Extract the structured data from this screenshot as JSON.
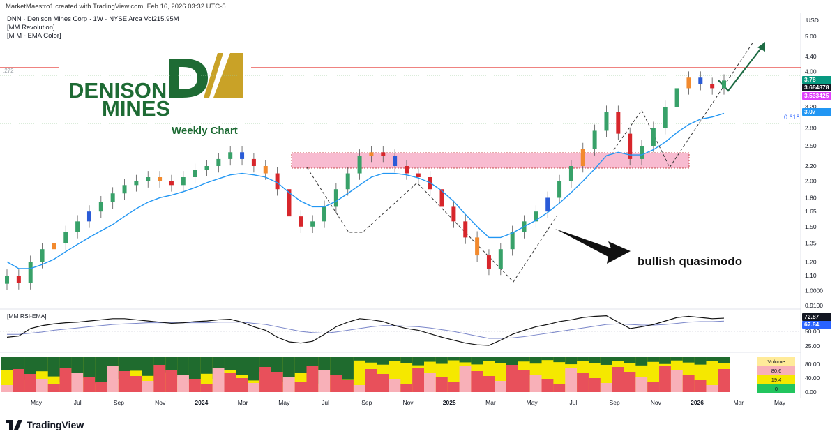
{
  "header": {
    "credit": "MarketMaestro1 created with TradingView.com, Feb 16, 2026 03:32 UTC-5",
    "symbol_line": "DNN · Denison Mines Corp · 1W · NYSE Arca  Vol215.95M",
    "indicator1": "[MM Revolution]",
    "indicator2": "[M M - EMA Color]"
  },
  "logo": {
    "line1": "DENISON",
    "line2": "MINES"
  },
  "annotations": {
    "weekly_chart": "Weekly Chart",
    "pattern_label": "bullish quasimodo",
    "fib_label": "0.618",
    "left_level_label": ".272"
  },
  "price_axis": {
    "currency": "USD",
    "ticks": [
      "5.00",
      "4.40",
      "4.00",
      "3.20",
      "2.80",
      "2.50",
      "2.20",
      "2.00",
      "1.80",
      "1.65",
      "1.50",
      "1.35",
      "1.20",
      "1.10",
      "1.0000",
      "0.9100"
    ],
    "tags": [
      {
        "label": "3.78",
        "color": "#089981",
        "text": "#ffffff"
      },
      {
        "label": "3.684878",
        "color": "#131722",
        "text": "#ffffff"
      },
      {
        "label": "3.533425",
        "color": "#e040fb",
        "text": "#ffffff"
      },
      {
        "label": "3.07",
        "color": "#2196f3",
        "text": "#ffffff"
      }
    ]
  },
  "rsi_panel": {
    "title": "[MM RSI-EMA]",
    "ticks": [
      "50.00",
      "25.00"
    ],
    "tags": [
      {
        "label": "72.87",
        "color": "#131722",
        "text": "#ffffff"
      },
      {
        "label": "67.84",
        "color": "#2962ff",
        "text": "#ffffff"
      }
    ]
  },
  "volume_panel": {
    "legend": [
      {
        "label": "Volume",
        "color": "#ffeb99",
        "text": "#131722"
      },
      {
        "label": "80.6",
        "color": "#f8b0b8",
        "text": "#131722"
      },
      {
        "label": "19.4",
        "color": "#f5e800",
        "text": "#131722"
      },
      {
        "label": "0",
        "color": "#22c55e",
        "text": "#131722"
      }
    ],
    "ticks": [
      "80.00",
      "40.00",
      "0.00"
    ]
  },
  "time_axis": {
    "labels": [
      "May",
      "Jul",
      "Sep",
      "Nov",
      "2024",
      "Mar",
      "May",
      "Jul",
      "Sep",
      "Nov",
      "2025",
      "Mar",
      "May",
      "Jul",
      "Sep",
      "Nov",
      "2026",
      "Mar",
      "May"
    ]
  },
  "footer": {
    "brand": "TradingView"
  },
  "colors": {
    "up": "#38a169",
    "down": "#d7262b",
    "orange": "#f28a2e",
    "blue": "#2a5bd7",
    "ema": "#2196f3",
    "zone": "#f8bbd0",
    "resistance": "#e53935"
  },
  "chart_data": {
    "type": "line",
    "title": "DNN · Denison Mines Corp · 1W · NYSE Arca",
    "xlabel": "",
    "ylabel": "",
    "ylim": [
      0.91,
      5.0
    ],
    "y_scale": "log",
    "resistance_level": 4.15,
    "fib_0618_level": 2.9,
    "demand_zone": [
      2.2,
      2.4
    ],
    "series": [
      {
        "name": "price",
        "values": [
          1.1,
          1.05,
          1.2,
          1.3,
          1.35,
          1.45,
          1.55,
          1.65,
          1.75,
          1.85,
          1.95,
          2.0,
          2.05,
          2.0,
          1.95,
          2.05,
          2.15,
          2.2,
          2.3,
          2.4,
          2.3,
          2.2,
          2.1,
          1.9,
          1.6,
          1.5,
          1.55,
          1.7,
          1.9,
          2.1,
          2.35,
          2.4,
          2.35,
          2.2,
          2.1,
          2.05,
          1.9,
          1.7,
          1.55,
          1.4,
          1.25,
          1.15,
          1.3,
          1.45,
          1.55,
          1.65,
          1.8,
          2.0,
          2.2,
          2.45,
          2.75,
          3.1,
          2.7,
          2.3,
          2.5,
          2.8,
          3.2,
          3.6,
          3.85,
          3.7,
          3.6,
          3.78
        ]
      },
      {
        "name": "ema",
        "values": [
          1.2,
          1.15,
          1.15,
          1.18,
          1.22,
          1.28,
          1.34,
          1.4,
          1.46,
          1.52,
          1.6,
          1.68,
          1.75,
          1.8,
          1.83,
          1.87,
          1.92,
          1.98,
          2.03,
          2.08,
          2.1,
          2.08,
          2.05,
          1.98,
          1.86,
          1.76,
          1.7,
          1.7,
          1.76,
          1.85,
          1.95,
          2.05,
          2.1,
          2.1,
          2.08,
          2.04,
          1.98,
          1.88,
          1.76,
          1.62,
          1.5,
          1.4,
          1.4,
          1.44,
          1.5,
          1.56,
          1.64,
          1.74,
          1.86,
          2.0,
          2.16,
          2.35,
          2.4,
          2.36,
          2.36,
          2.44,
          2.56,
          2.72,
          2.86,
          2.96,
          3.0,
          3.07
        ]
      },
      {
        "name": "rsi",
        "values": [
          40,
          42,
          55,
          60,
          63,
          65,
          66,
          68,
          70,
          72,
          72,
          70,
          68,
          66,
          64,
          65,
          67,
          68,
          70,
          71,
          66,
          58,
          52,
          40,
          32,
          30,
          33,
          45,
          58,
          66,
          72,
          70,
          67,
          60,
          55,
          52,
          46,
          40,
          35,
          30,
          27,
          26,
          35,
          45,
          52,
          58,
          62,
          67,
          70,
          74,
          76,
          77,
          66,
          55,
          58,
          62,
          68,
          74,
          76,
          74,
          72,
          72.87
        ]
      },
      {
        "name": "rsi_ema",
        "values": [
          45,
          45,
          47,
          49,
          52,
          54,
          56,
          58,
          60,
          62,
          63,
          64,
          65,
          65,
          65,
          65,
          65,
          65,
          66,
          66,
          66,
          64,
          62,
          58,
          54,
          50,
          48,
          47,
          49,
          52,
          55,
          58,
          60,
          60,
          59,
          58,
          56,
          53,
          50,
          46,
          42,
          38,
          38,
          39,
          41,
          44,
          47,
          50,
          53,
          56,
          59,
          62,
          63,
          62,
          61,
          61,
          62,
          64,
          66,
          67,
          67,
          67.84
        ]
      }
    ]
  }
}
